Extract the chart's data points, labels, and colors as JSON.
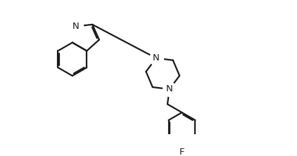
{
  "bg_color": "#ffffff",
  "line_color": "#1a1a1a",
  "line_width": 1.6,
  "label_fontsize": 9.5,
  "fig_width": 4.22,
  "fig_height": 2.22,
  "dpi": 100,
  "xlim": [
    0.0,
    9.5
  ],
  "ylim": [
    0.2,
    5.8
  ]
}
